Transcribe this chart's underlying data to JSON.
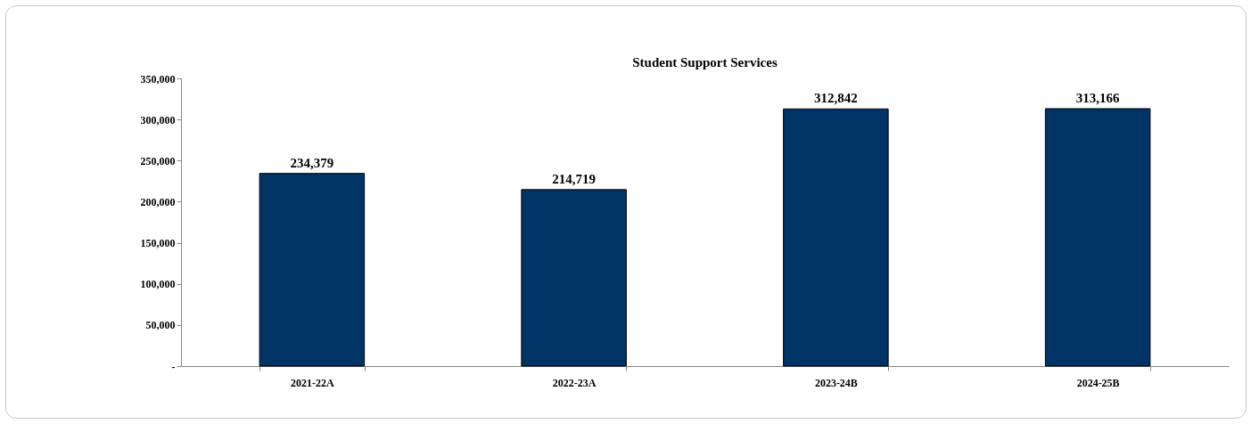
{
  "chart_data": {
    "type": "bar",
    "title": "Student Support Services",
    "categories": [
      "2021-22A",
      "2022-23A",
      "2023-24B",
      "2024-25B"
    ],
    "values": [
      234379,
      214719,
      312842,
      313166
    ],
    "color": "#003366",
    "ylim": [
      0,
      350000
    ],
    "yticks": [
      {
        "value": 0,
        "label": "-"
      },
      {
        "value": 50000,
        "label": "50,000"
      },
      {
        "value": 100000,
        "label": "100,000"
      },
      {
        "value": 150000,
        "label": "150,000"
      },
      {
        "value": 200000,
        "label": "200,000"
      },
      {
        "value": 250000,
        "label": "250,000"
      },
      {
        "value": 300000,
        "label": "300,000"
      },
      {
        "value": 350000,
        "label": "350,000"
      }
    ],
    "value_labels": [
      "234,379",
      "214,719",
      "312,842",
      "313,166"
    ],
    "grid": false
  }
}
